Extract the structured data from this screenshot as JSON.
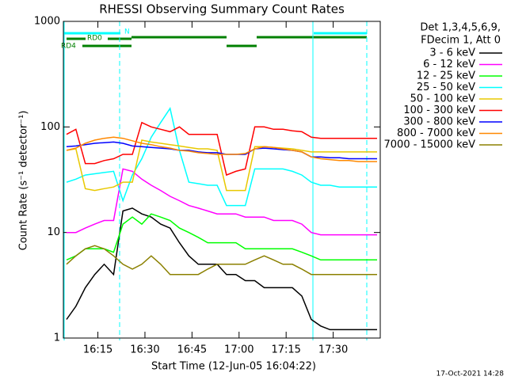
{
  "chart_data": {
    "type": "line",
    "title": "RHESSI Observing Summary Count Rates",
    "xlabel": "Start Time (12-Jun-05 16:04:22)",
    "ylabel": "Count Rate (s⁻¹ detector⁻¹)",
    "legend_title": [
      "Det 1,3,4,5,6,9,",
      "FDecim 1, Att 0"
    ],
    "timestamp": "17-Oct-2021 14:28",
    "annotations": [
      "N",
      "RD0",
      "RD4"
    ],
    "log_y": true,
    "legend": "right",
    "xlim": [
      "16:04",
      "17:45"
    ],
    "xticks": [
      "16:15",
      "16:30",
      "16:45",
      "17:00",
      "17:15",
      "17:30"
    ],
    "ylim": [
      1,
      1000
    ],
    "yticks": [
      1,
      10,
      100,
      1000
    ],
    "x": [
      "16:05",
      "16:08",
      "16:11",
      "16:14",
      "16:17",
      "16:20",
      "16:23",
      "16:26",
      "16:29",
      "16:32",
      "16:35",
      "16:38",
      "16:41",
      "16:44",
      "16:47",
      "16:50",
      "16:53",
      "16:56",
      "16:59",
      "17:02",
      "17:05",
      "17:08",
      "17:11",
      "17:14",
      "17:17",
      "17:20",
      "17:23",
      "17:26",
      "17:29",
      "17:32",
      "17:35",
      "17:38",
      "17:41",
      "17:44"
    ],
    "series": [
      {
        "name": "3 - 6 keV",
        "color": "#000000",
        "values": [
          1.5,
          2,
          3,
          4,
          5,
          4,
          16,
          17,
          15,
          14,
          12,
          11,
          8,
          6,
          5,
          5,
          5,
          4,
          4,
          3.5,
          3.5,
          3,
          3,
          3,
          3,
          2.5,
          1.5,
          1.3,
          1.2,
          1.2,
          1.2,
          1.2,
          1.2,
          1.2
        ]
      },
      {
        "name": "6 - 12 keV",
        "color": "#ff00ff",
        "values": [
          10,
          10,
          11,
          12,
          13,
          13,
          40,
          38,
          32,
          28,
          25,
          22,
          20,
          18,
          17,
          16,
          15,
          15,
          15,
          14,
          14,
          14,
          13,
          13,
          13,
          12,
          10,
          9.5,
          9.5,
          9.5,
          9.5,
          9.5,
          9.5,
          9.5
        ]
      },
      {
        "name": "12 - 25 keV",
        "color": "#00ff00",
        "values": [
          5.5,
          6,
          7,
          7,
          7,
          6.5,
          12,
          14,
          12,
          15,
          14,
          13,
          11,
          10,
          9,
          8,
          8,
          8,
          8,
          7,
          7,
          7,
          7,
          7,
          7,
          6.5,
          6,
          5.5,
          5.5,
          5.5,
          5.5,
          5.5,
          5.5,
          5.5
        ]
      },
      {
        "name": "25 - 50 keV",
        "color": "#00ffff",
        "values": [
          30,
          32,
          35,
          36,
          37,
          38,
          20,
          35,
          50,
          80,
          110,
          150,
          60,
          30,
          29,
          28,
          28,
          18,
          18,
          18,
          40,
          40,
          40,
          40,
          38,
          35,
          30,
          28,
          28,
          27,
          27,
          27,
          27,
          27
        ]
      },
      {
        "name": "50 - 100 keV",
        "color": "#e8c800",
        "values": [
          60,
          62,
          26,
          25,
          26,
          27,
          30,
          30,
          75,
          72,
          70,
          68,
          66,
          64,
          62,
          62,
          60,
          25,
          25,
          25,
          65,
          65,
          64,
          63,
          62,
          60,
          58,
          58,
          58,
          58,
          58,
          58,
          58,
          58
        ]
      },
      {
        "name": "100 - 300 keV",
        "color": "#ff0000",
        "values": [
          85,
          95,
          45,
          45,
          48,
          50,
          55,
          55,
          110,
          100,
          95,
          90,
          100,
          85,
          85,
          85,
          85,
          35,
          38,
          40,
          100,
          100,
          95,
          95,
          92,
          90,
          80,
          78,
          78,
          78,
          78,
          78,
          78,
          78
        ]
      },
      {
        "name": "300 - 800 keV",
        "color": "#0000ff",
        "values": [
          65,
          66,
          68,
          70,
          71,
          72,
          70,
          66,
          65,
          64,
          63,
          62,
          60,
          60,
          58,
          57,
          57,
          55,
          55,
          55,
          62,
          63,
          62,
          61,
          60,
          58,
          52,
          52,
          51,
          51,
          50,
          50,
          50,
          50
        ]
      },
      {
        "name": "800 - 7000 keV",
        "color": "#ff8800",
        "values": [
          60,
          63,
          70,
          75,
          78,
          80,
          78,
          74,
          70,
          68,
          65,
          63,
          60,
          59,
          57,
          56,
          55,
          55,
          55,
          56,
          62,
          65,
          64,
          62,
          60,
          58,
          52,
          50,
          49,
          48,
          48,
          47,
          47,
          47
        ]
      },
      {
        "name": "7000 - 15000 keV",
        "color": "#8b8000",
        "values": [
          5,
          6,
          7,
          7.5,
          7,
          6,
          5,
          4.5,
          5,
          6,
          5,
          4,
          4,
          4,
          4,
          4.5,
          5,
          5,
          5,
          5,
          5.5,
          6,
          5.5,
          5,
          5,
          4.5,
          4,
          4,
          4,
          4,
          4,
          4,
          4,
          4
        ]
      }
    ]
  }
}
